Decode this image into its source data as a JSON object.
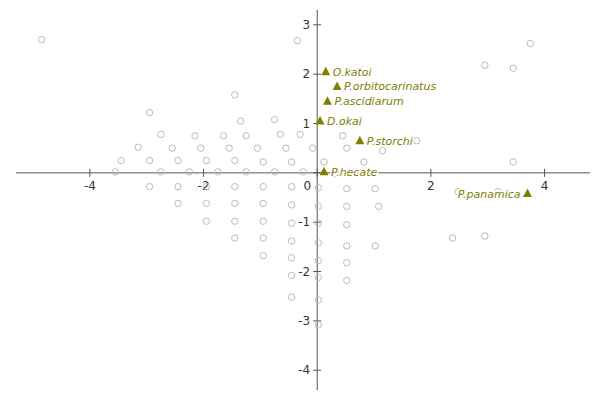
{
  "chart_data": {
    "type": "scatter",
    "xlim": [
      -5.3,
      4.8
    ],
    "ylim": [
      -4.4,
      3.3
    ],
    "xticks": [
      -4,
      -2,
      0,
      2,
      4
    ],
    "yticks": [
      -4,
      -3,
      -2,
      -1,
      0,
      1,
      2,
      3
    ],
    "grid": false,
    "series": [
      {
        "color": "#bbbbbb",
        "marker": "circle",
        "x": [
          -4.85,
          -0.35,
          3.75,
          2.95,
          3.45,
          -1.45,
          -2.95,
          -1.35,
          -0.75,
          -2.75,
          -2.15,
          -1.65,
          -1.25,
          -0.65,
          -0.3,
          0.45,
          1.75,
          -3.15,
          -2.55,
          -2.05,
          -1.55,
          -1.05,
          -0.55,
          -0.08,
          0.52,
          1.15,
          -3.45,
          -2.95,
          -2.45,
          -1.95,
          -1.45,
          -0.95,
          -0.45,
          0.12,
          0.82,
          3.45,
          -3.55,
          -2.75,
          -2.25,
          -1.75,
          -1.25,
          -0.75,
          -0.25,
          0.32,
          -2.95,
          -2.45,
          -1.95,
          -1.45,
          -0.95,
          -0.45,
          0.02,
          0.52,
          1.02,
          2.48,
          3.18,
          -2.45,
          -1.95,
          -1.45,
          -0.95,
          -0.45,
          0.02,
          0.52,
          1.08,
          -1.95,
          -1.45,
          -0.95,
          -0.45,
          0.02,
          0.52,
          -1.45,
          -0.95,
          -0.45,
          0.02,
          0.52,
          1.02,
          2.38,
          -0.95,
          -0.45,
          0.02,
          0.52,
          -0.45,
          0.02,
          0.52,
          -0.45,
          0.02,
          0.02,
          2.95
        ],
        "values": [
          2.7,
          2.68,
          2.62,
          2.18,
          2.12,
          1.58,
          1.22,
          1.05,
          1.08,
          0.78,
          0.75,
          0.75,
          0.75,
          0.78,
          0.78,
          0.75,
          0.65,
          0.52,
          0.5,
          0.5,
          0.5,
          0.5,
          0.5,
          0.5,
          0.5,
          0.45,
          0.25,
          0.25,
          0.25,
          0.25,
          0.25,
          0.22,
          0.22,
          0.22,
          0.22,
          0.22,
          0.02,
          0.02,
          0.02,
          0.02,
          0.02,
          0.02,
          0.02,
          -0.02,
          -0.28,
          -0.28,
          -0.28,
          -0.28,
          -0.28,
          -0.28,
          -0.3,
          -0.32,
          -0.32,
          -0.38,
          -0.38,
          -0.62,
          -0.62,
          -0.62,
          -0.62,
          -0.65,
          -0.68,
          -0.68,
          -0.68,
          -0.98,
          -0.98,
          -0.98,
          -1.02,
          -1.02,
          -1.05,
          -1.32,
          -1.32,
          -1.38,
          -1.42,
          -1.48,
          -1.48,
          -1.32,
          -1.68,
          -1.72,
          -1.78,
          -1.82,
          -2.08,
          -2.12,
          -2.18,
          -2.52,
          -2.58,
          -3.08,
          -1.28
        ]
      },
      {
        "color": "#808000",
        "marker": "triangle",
        "x": [
          0.15,
          0.35,
          0.18,
          0.05,
          0.75,
          0.12,
          3.7
        ],
        "values": [
          2.05,
          1.75,
          1.45,
          1.05,
          0.65,
          0.02,
          -0.42
        ],
        "labels": [
          "O.katoi",
          "P.orbitocarinatus",
          "P.ascidiarum",
          "D.okai",
          "P.storchi",
          "P.hecate",
          "P.panamica"
        ]
      }
    ]
  }
}
